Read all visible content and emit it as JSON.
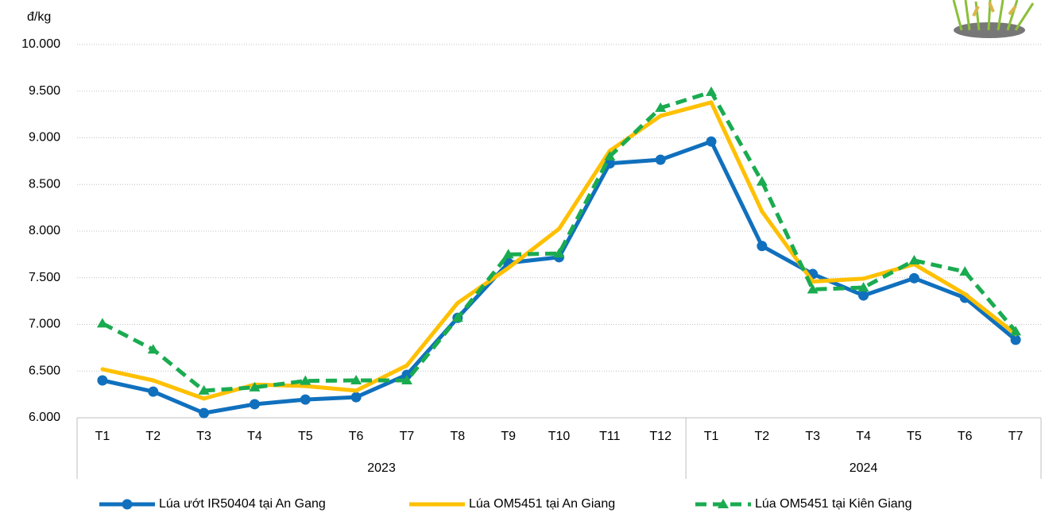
{
  "chart_data": {
    "type": "line",
    "y_label": "đ/kg",
    "category_groups": [
      {
        "name": "2023",
        "categories": [
          "T1",
          "T2",
          "T3",
          "T4",
          "T5",
          "T6",
          "T7",
          "T8",
          "T9",
          "T10",
          "T11",
          "T12"
        ]
      },
      {
        "name": "2024",
        "categories": [
          "T1",
          "T2",
          "T3",
          "T4",
          "T5",
          "T6",
          "T7"
        ]
      }
    ],
    "series": [
      {
        "name": "Lúa ướt IR50404 tại An Gang",
        "color": "#1070bd",
        "marker": "circle",
        "dash": false,
        "values": [
          6400,
          6280,
          6050,
          6145,
          6195,
          6220,
          6460,
          7070,
          7660,
          7720,
          8725,
          8765,
          8960,
          7840,
          7540,
          7310,
          7495,
          7285,
          6835
        ]
      },
      {
        "name": "Lúa OM5451 tại An Giang",
        "color": "#ffc000",
        "marker": "diamond",
        "dash": false,
        "values": [
          6520,
          6400,
          6205,
          6355,
          6340,
          6290,
          6560,
          7230,
          7605,
          8025,
          8860,
          9235,
          9380,
          8210,
          7460,
          7490,
          7645,
          7325,
          6895
        ]
      },
      {
        "name": "Lúa OM5451 tại Kiên Giang",
        "color": "#1aab50",
        "marker": "triangle",
        "dash": true,
        "values": [
          7010,
          6730,
          6290,
          6325,
          6395,
          6400,
          6400,
          7070,
          7750,
          7760,
          8800,
          9320,
          9490,
          8530,
          7375,
          7395,
          7685,
          7565,
          6925
        ]
      }
    ],
    "ylim": [
      6000,
      10000
    ],
    "yticks": [
      {
        "value": 6000,
        "label": "6.000"
      },
      {
        "value": 6500,
        "label": "6.500"
      },
      {
        "value": 7000,
        "label": "7.000"
      },
      {
        "value": 7500,
        "label": "7.500"
      },
      {
        "value": 8000,
        "label": "8.000"
      },
      {
        "value": 8500,
        "label": "8.500"
      },
      {
        "value": 9000,
        "label": "9.000"
      },
      {
        "value": 9500,
        "label": "9.500"
      },
      {
        "value": 10000,
        "label": "10.000"
      }
    ],
    "grid": true
  }
}
